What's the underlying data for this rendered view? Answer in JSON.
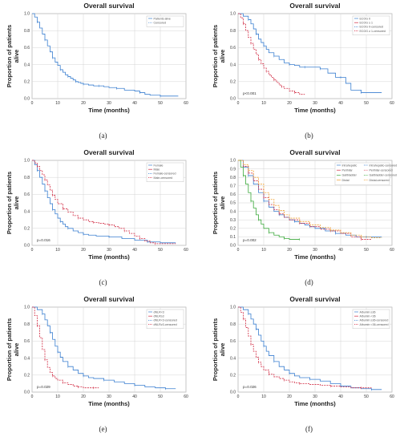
{
  "chart_data": [
    {
      "id": "a",
      "type": "line",
      "title": "Overall survival",
      "xlabel": "Time (months)",
      "ylabel": "Proportion of patients alive",
      "xlim": [
        0,
        60
      ],
      "ylim": [
        0,
        1.0
      ],
      "xticks": [
        0,
        10,
        20,
        30,
        40,
        50,
        60
      ],
      "yticks": [
        0.0,
        0.2,
        0.4,
        0.6,
        0.8,
        1.0
      ],
      "legend_position": "top-right",
      "grid": true,
      "p_value": "",
      "caption": "(a)",
      "legend": [
        {
          "label": "Patients alive",
          "color": "#3a7fd0",
          "style": "solid"
        },
        {
          "label": "Censored",
          "color": "#3a7fd0",
          "style": "dash"
        }
      ],
      "series": [
        {
          "color": "#3a7fd0",
          "dash": false,
          "x": [
            0,
            1,
            2,
            3,
            4,
            5,
            6,
            7,
            8,
            9,
            10,
            11,
            12,
            13,
            14,
            15,
            16,
            17,
            18,
            19,
            20,
            22,
            24,
            26,
            28,
            30,
            33,
            36,
            40,
            42,
            44,
            46,
            50,
            57
          ],
          "y": [
            1.0,
            0.96,
            0.9,
            0.83,
            0.76,
            0.69,
            0.62,
            0.55,
            0.48,
            0.43,
            0.39,
            0.34,
            0.31,
            0.28,
            0.26,
            0.24,
            0.22,
            0.2,
            0.19,
            0.18,
            0.17,
            0.16,
            0.15,
            0.15,
            0.14,
            0.13,
            0.12,
            0.1,
            0.09,
            0.07,
            0.05,
            0.04,
            0.03,
            0.03
          ]
        }
      ]
    },
    {
      "id": "b",
      "type": "line",
      "title": "Overall survival",
      "xlabel": "Time (months)",
      "ylabel": "Proportion of patients alive",
      "xlim": [
        0,
        60
      ],
      "ylim": [
        0,
        1.0
      ],
      "xticks": [
        0,
        10,
        20,
        30,
        40,
        50,
        60
      ],
      "yticks": [
        0.0,
        0.2,
        0.4,
        0.6,
        0.8,
        1.0
      ],
      "legend_position": "top-right",
      "grid": true,
      "p_value": "p<0.001",
      "caption": "(b)",
      "legend": [
        {
          "label": "ECOG 0",
          "color": "#3a7fd0",
          "style": "solid"
        },
        {
          "label": "ECOG ≥ 1",
          "color": "#d02840",
          "style": "solid"
        },
        {
          "label": "ECOG 0-censored",
          "color": "#3a7fd0",
          "style": "dash"
        },
        {
          "label": "ECOG ≥ 1-censored",
          "color": "#d02840",
          "style": "dash"
        }
      ],
      "series": [
        {
          "color": "#3a7fd0",
          "dash": false,
          "x": [
            0,
            2,
            4,
            5,
            6,
            7,
            8,
            9,
            10,
            11,
            12,
            14,
            16,
            18,
            20,
            22,
            24,
            26,
            28,
            30,
            32,
            35,
            38,
            40,
            42,
            44,
            48,
            52,
            56
          ],
          "y": [
            1.0,
            0.97,
            0.93,
            0.88,
            0.82,
            0.76,
            0.7,
            0.66,
            0.62,
            0.58,
            0.54,
            0.5,
            0.46,
            0.42,
            0.4,
            0.39,
            0.37,
            0.37,
            0.37,
            0.37,
            0.35,
            0.3,
            0.25,
            0.25,
            0.18,
            0.1,
            0.07,
            0.07,
            0.07
          ]
        },
        {
          "color": "#d02840",
          "dash": true,
          "x": [
            0,
            1,
            2,
            3,
            4,
            5,
            6,
            7,
            8,
            9,
            10,
            11,
            12,
            13,
            14,
            15,
            16,
            17,
            18,
            20,
            22,
            24,
            26
          ],
          "y": [
            1.0,
            0.95,
            0.88,
            0.8,
            0.72,
            0.65,
            0.58,
            0.52,
            0.46,
            0.41,
            0.36,
            0.32,
            0.28,
            0.25,
            0.22,
            0.19,
            0.16,
            0.14,
            0.12,
            0.09,
            0.07,
            0.05,
            0.05
          ]
        }
      ]
    },
    {
      "id": "c",
      "type": "line",
      "title": "Overall survival",
      "xlabel": "Time (months)",
      "ylabel": "Proportion of patients alive",
      "xlim": [
        0,
        60
      ],
      "ylim": [
        0,
        1.0
      ],
      "xticks": [
        0,
        10,
        20,
        30,
        40,
        50,
        60
      ],
      "yticks": [
        0.0,
        0.2,
        0.4,
        0.6,
        0.8,
        1.0
      ],
      "legend_position": "top-right",
      "grid": true,
      "p_value": "p=0.016",
      "caption": "(c)",
      "legend": [
        {
          "label": "Female",
          "color": "#3a7fd0",
          "style": "solid"
        },
        {
          "label": "Male",
          "color": "#d02840",
          "style": "solid"
        },
        {
          "label": "Female-censored",
          "color": "#3a7fd0",
          "style": "dash"
        },
        {
          "label": "Male-censored",
          "color": "#d02840",
          "style": "dash"
        }
      ],
      "series": [
        {
          "color": "#3a7fd0",
          "dash": false,
          "x": [
            0,
            1,
            2,
            3,
            4,
            5,
            6,
            7,
            8,
            9,
            10,
            11,
            12,
            13,
            14,
            16,
            18,
            20,
            22,
            25,
            30,
            35,
            40,
            45,
            50,
            56
          ],
          "y": [
            1.0,
            0.95,
            0.88,
            0.8,
            0.72,
            0.64,
            0.56,
            0.49,
            0.42,
            0.37,
            0.32,
            0.28,
            0.25,
            0.22,
            0.2,
            0.17,
            0.15,
            0.13,
            0.12,
            0.11,
            0.1,
            0.08,
            0.06,
            0.04,
            0.03,
            0.03
          ]
        },
        {
          "color": "#d02840",
          "dash": true,
          "x": [
            0,
            1,
            2,
            3,
            4,
            5,
            6,
            7,
            8,
            9,
            10,
            12,
            14,
            16,
            18,
            20,
            22,
            24,
            26,
            28,
            30,
            32,
            34,
            36,
            38,
            40,
            42,
            44,
            46,
            48,
            50,
            56
          ],
          "y": [
            1.0,
            0.97,
            0.93,
            0.88,
            0.83,
            0.77,
            0.71,
            0.65,
            0.59,
            0.54,
            0.49,
            0.43,
            0.39,
            0.35,
            0.32,
            0.3,
            0.28,
            0.27,
            0.26,
            0.25,
            0.24,
            0.22,
            0.2,
            0.17,
            0.14,
            0.11,
            0.08,
            0.05,
            0.03,
            0.02,
            0.02,
            0.02
          ]
        }
      ]
    },
    {
      "id": "d",
      "type": "line",
      "title": "Overall survival",
      "xlabel": "Time (months)",
      "ylabel": "Proportion of patients alive",
      "xlim": [
        0,
        60
      ],
      "ylim": [
        0,
        1.0
      ],
      "xticks": [
        0,
        10,
        20,
        30,
        40,
        50,
        60
      ],
      "yticks": [
        0.0,
        0.1,
        0.2,
        0.3,
        0.4,
        0.5,
        0.6,
        0.7,
        0.8,
        0.9,
        1.0
      ],
      "legend_position": "top-right",
      "grid": true,
      "p_value": "p=0.002",
      "caption": "(d)",
      "legend": [
        {
          "label": "Intrahepatic",
          "color": "#3a7fd0",
          "style": "solid"
        },
        {
          "label": "Perihilar",
          "color": "#d02840",
          "style": "solid"
        },
        {
          "label": "Gallbladder",
          "color": "#3aa83a",
          "style": "solid"
        },
        {
          "label": "Distal",
          "color": "#f0a030",
          "style": "solid"
        },
        {
          "label": "Intrahepatic-censored",
          "color": "#3a7fd0",
          "style": "dash"
        },
        {
          "label": "Perihilar-censored",
          "color": "#d02840",
          "style": "dash"
        },
        {
          "label": "Gallbladder-censored",
          "color": "#3aa83a",
          "style": "dash"
        },
        {
          "label": "Distal-censored",
          "color": "#f0a030",
          "style": "dash"
        }
      ],
      "series": [
        {
          "color": "#3a7fd0",
          "dash": false,
          "x": [
            0,
            2,
            4,
            6,
            8,
            10,
            12,
            14,
            16,
            18,
            20,
            22,
            24,
            26,
            28,
            30,
            34,
            38,
            42,
            46,
            50,
            56
          ],
          "y": [
            1.0,
            0.92,
            0.82,
            0.72,
            0.62,
            0.52,
            0.45,
            0.4,
            0.36,
            0.33,
            0.3,
            0.28,
            0.26,
            0.24,
            0.22,
            0.2,
            0.17,
            0.14,
            0.12,
            0.1,
            0.1,
            0.1
          ]
        },
        {
          "color": "#d02840",
          "dash": true,
          "x": [
            0,
            2,
            4,
            6,
            8,
            10,
            12,
            14,
            16,
            18,
            20,
            24,
            28,
            32,
            36,
            40,
            44,
            48,
            52
          ],
          "y": [
            1.0,
            0.93,
            0.85,
            0.76,
            0.66,
            0.56,
            0.48,
            0.42,
            0.37,
            0.33,
            0.3,
            0.26,
            0.22,
            0.19,
            0.17,
            0.14,
            0.1,
            0.07,
            0.07
          ]
        },
        {
          "color": "#3aa83a",
          "dash": false,
          "x": [
            0,
            1,
            2,
            3,
            4,
            5,
            6,
            7,
            8,
            9,
            10,
            12,
            14,
            16,
            18,
            20,
            22,
            24
          ],
          "y": [
            1.0,
            0.92,
            0.82,
            0.72,
            0.62,
            0.52,
            0.44,
            0.36,
            0.3,
            0.25,
            0.2,
            0.15,
            0.12,
            0.1,
            0.08,
            0.07,
            0.07,
            0.07
          ]
        },
        {
          "color": "#f0a030",
          "dash": true,
          "x": [
            0,
            2,
            4,
            6,
            8,
            10,
            12,
            14,
            16,
            18,
            20,
            24,
            28,
            32,
            36,
            40,
            44,
            48,
            52,
            56
          ],
          "y": [
            1.0,
            0.95,
            0.88,
            0.8,
            0.72,
            0.62,
            0.54,
            0.47,
            0.41,
            0.36,
            0.32,
            0.28,
            0.24,
            0.21,
            0.18,
            0.15,
            0.12,
            0.1,
            0.09,
            0.09
          ]
        }
      ]
    },
    {
      "id": "e",
      "type": "line",
      "title": "Overall survival",
      "xlabel": "Time (months)",
      "ylabel": "Proportion of patients alive",
      "xlim": [
        0,
        60
      ],
      "ylim": [
        0,
        1.0
      ],
      "xticks": [
        0,
        10,
        20,
        30,
        40,
        50,
        60
      ],
      "yticks": [
        0.0,
        0.2,
        0.4,
        0.6,
        0.8,
        1.0
      ],
      "legend_position": "top-right",
      "grid": true,
      "p_value": "p=0.029",
      "caption": "(e)",
      "legend": [
        {
          "label": "dNLR<3",
          "color": "#3a7fd0",
          "style": "solid"
        },
        {
          "label": "dNLR≥3",
          "color": "#d02840",
          "style": "solid"
        },
        {
          "label": "dNLR<3-censored",
          "color": "#3a7fd0",
          "style": "dash"
        },
        {
          "label": "dNLR≥3-censored",
          "color": "#d02840",
          "style": "dash"
        }
      ],
      "series": [
        {
          "color": "#3a7fd0",
          "dash": false,
          "x": [
            0,
            2,
            4,
            5,
            6,
            7,
            8,
            9,
            10,
            11,
            12,
            14,
            16,
            18,
            20,
            22,
            24,
            28,
            32,
            36,
            40,
            44,
            48,
            52,
            56
          ],
          "y": [
            1.0,
            0.97,
            0.92,
            0.85,
            0.78,
            0.7,
            0.62,
            0.54,
            0.47,
            0.41,
            0.36,
            0.3,
            0.26,
            0.22,
            0.19,
            0.17,
            0.16,
            0.14,
            0.12,
            0.1,
            0.08,
            0.06,
            0.05,
            0.04,
            0.04
          ]
        },
        {
          "color": "#d02840",
          "dash": true,
          "x": [
            0,
            1,
            2,
            3,
            4,
            5,
            6,
            7,
            8,
            9,
            10,
            12,
            14,
            16,
            18,
            20,
            22,
            24,
            26
          ],
          "y": [
            1.0,
            0.9,
            0.78,
            0.64,
            0.5,
            0.38,
            0.29,
            0.23,
            0.19,
            0.16,
            0.14,
            0.11,
            0.09,
            0.07,
            0.06,
            0.05,
            0.05,
            0.05,
            0.05
          ]
        }
      ]
    },
    {
      "id": "f",
      "type": "line",
      "title": "Overall survival",
      "xlabel": "Time (months)",
      "ylabel": "Proportion of patients alive",
      "xlim": [
        0,
        60
      ],
      "ylim": [
        0,
        1.0
      ],
      "xticks": [
        0,
        10,
        20,
        30,
        40,
        50,
        60
      ],
      "yticks": [
        0.0,
        0.2,
        0.4,
        0.6,
        0.8,
        1.0
      ],
      "legend_position": "top-right",
      "grid": true,
      "p_value": "p=0.026",
      "caption": "(f)",
      "legend": [
        {
          "label": "Albumin ≥36",
          "color": "#3a7fd0",
          "style": "solid"
        },
        {
          "label": "Albumin <36",
          "color": "#d02840",
          "style": "solid"
        },
        {
          "label": "Albumin ≥36-censored",
          "color": "#3a7fd0",
          "style": "dash"
        },
        {
          "label": "Albumin <36-censored",
          "color": "#d02840",
          "style": "dash"
        }
      ],
      "series": [
        {
          "color": "#3a7fd0",
          "dash": false,
          "x": [
            0,
            2,
            4,
            5,
            6,
            7,
            8,
            9,
            10,
            11,
            12,
            14,
            16,
            18,
            20,
            22,
            24,
            28,
            32,
            36,
            40,
            44,
            48,
            52,
            56
          ],
          "y": [
            1.0,
            0.97,
            0.92,
            0.86,
            0.8,
            0.74,
            0.67,
            0.6,
            0.54,
            0.48,
            0.43,
            0.36,
            0.3,
            0.26,
            0.22,
            0.19,
            0.17,
            0.15,
            0.13,
            0.1,
            0.07,
            0.05,
            0.04,
            0.03,
            0.03
          ]
        },
        {
          "color": "#d02840",
          "dash": true,
          "x": [
            0,
            1,
            2,
            3,
            4,
            5,
            6,
            7,
            8,
            9,
            10,
            12,
            14,
            16,
            18,
            20,
            22,
            24,
            28,
            32,
            36,
            40,
            44,
            48,
            52
          ],
          "y": [
            1.0,
            0.94,
            0.86,
            0.76,
            0.66,
            0.56,
            0.48,
            0.41,
            0.35,
            0.3,
            0.26,
            0.21,
            0.18,
            0.16,
            0.14,
            0.12,
            0.11,
            0.1,
            0.09,
            0.08,
            0.07,
            0.06,
            0.05,
            0.05,
            0.05
          ]
        }
      ]
    }
  ]
}
